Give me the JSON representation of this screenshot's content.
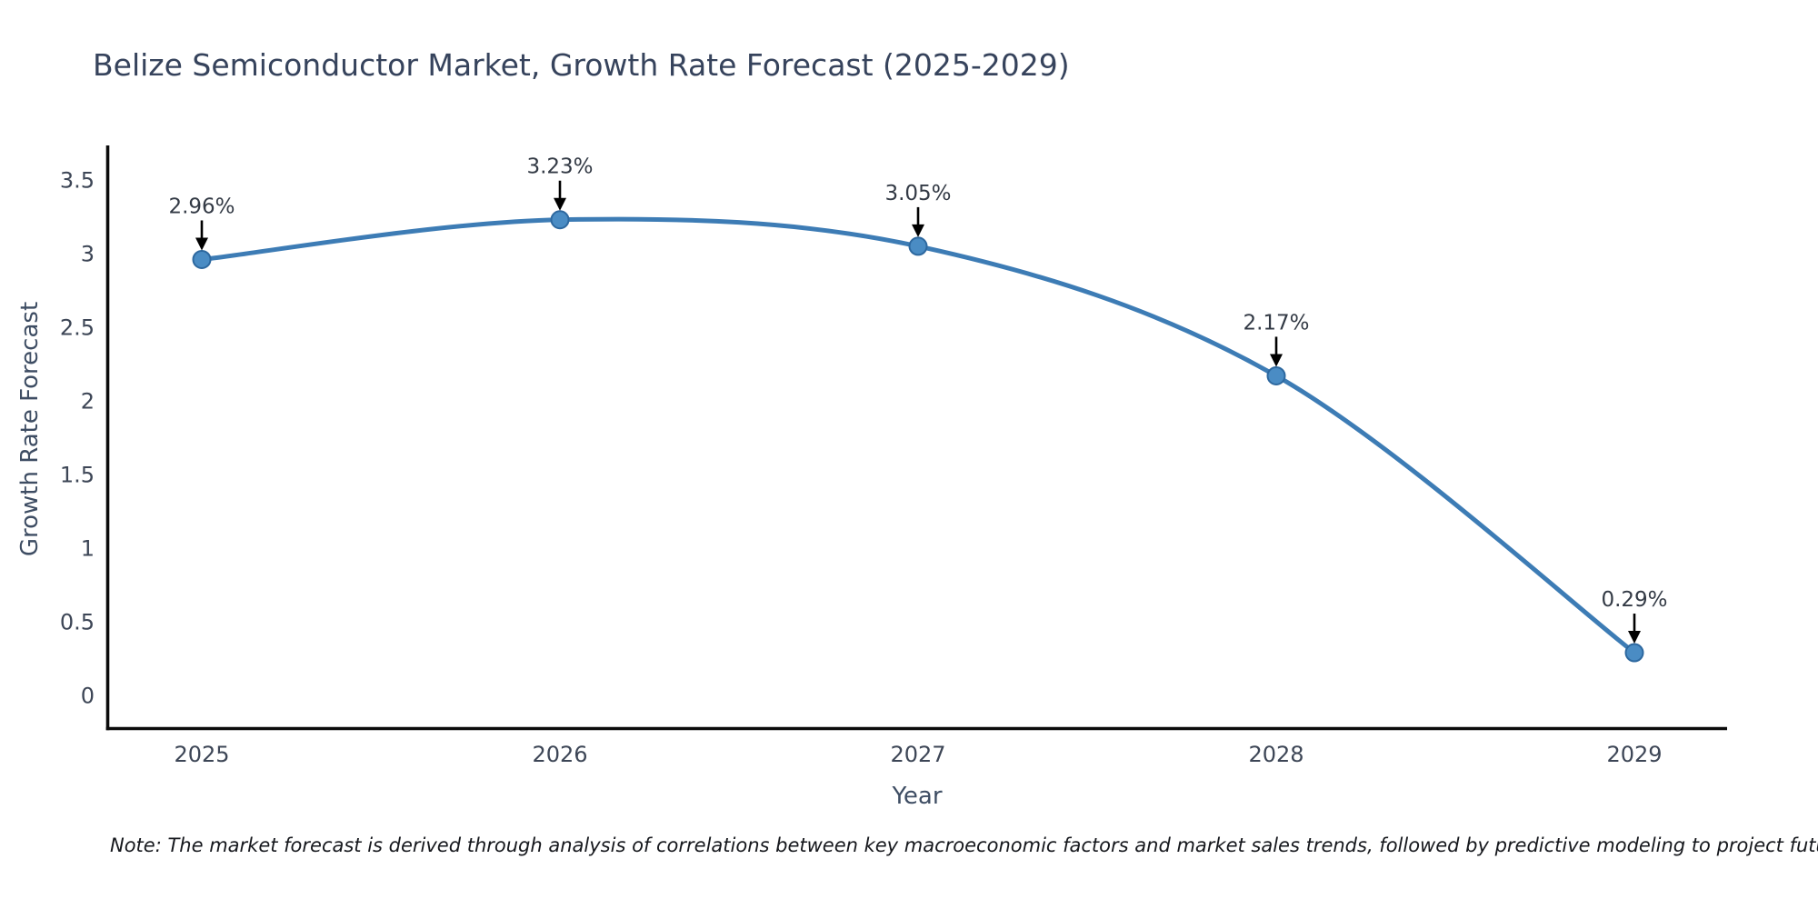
{
  "note": "Note: The market forecast is derived through analysis of correlations between key macroeconomic factors and market sales trends, followed by predictive modeling to project future sales",
  "chart_data": {
    "type": "line",
    "title": "Belize Semiconductor Market, Growth Rate Forecast (2025-2029)",
    "xlabel": "Year",
    "ylabel": "Growth Rate Forecast",
    "x": [
      2025,
      2026,
      2027,
      2028,
      2029
    ],
    "series": [
      {
        "name": "Growth Rate Forecast",
        "values": [
          2.96,
          3.23,
          3.05,
          2.17,
          0.29
        ]
      }
    ],
    "point_labels": [
      "2.96%",
      "3.23%",
      "3.05%",
      "2.17%",
      "0.29%"
    ],
    "yticks": [
      0,
      0.5,
      1,
      1.5,
      2,
      2.5,
      3,
      3.5
    ],
    "ylim": [
      -0.23,
      3.73
    ],
    "grid": false,
    "legend_position": "none",
    "curve_style": "spline",
    "colors": {
      "line": "#3d7cb5",
      "marker_fill": "#4a8cc4",
      "marker_edge": "#2d689f",
      "axis_line": "#0b0b0b",
      "tick_text": "#3d4656",
      "title_text": "#36435c",
      "axis_title_text": "#3e4d63",
      "annotation_text": "#333a45",
      "annotation_arrow": "#000000",
      "note_text": "#16181d"
    }
  }
}
